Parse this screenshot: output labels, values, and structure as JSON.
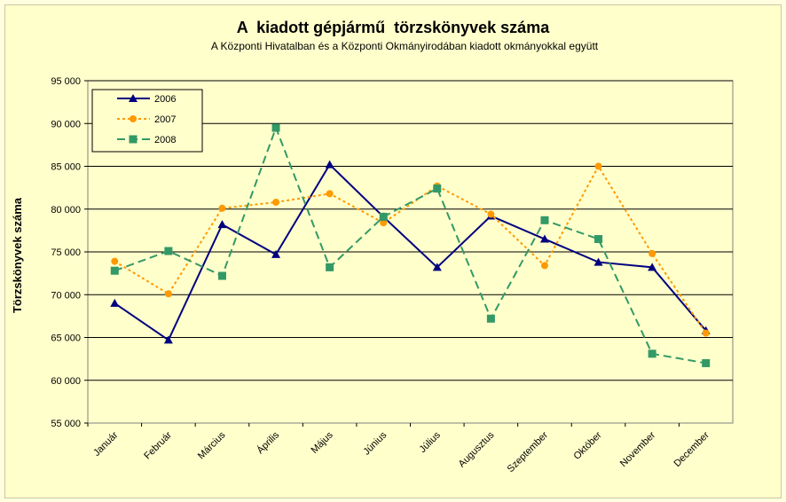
{
  "chart_data": {
    "type": "line",
    "title": "A  kiadott gépjármű  törzskönyvek száma",
    "subtitle": "A Központi Hivatalban és a Központi Okmányirodában kiadott okmányokkal együtt",
    "xlabel": "",
    "ylabel": "Törzskönyvek száma",
    "ylim": [
      55000,
      95000
    ],
    "yticks": [
      "55 000",
      "60 000",
      "65 000",
      "70 000",
      "75 000",
      "80 000",
      "85 000",
      "90 000",
      "95 000"
    ],
    "ytick_values": [
      55000,
      60000,
      65000,
      70000,
      75000,
      80000,
      85000,
      90000,
      95000
    ],
    "grid": true,
    "legend_position": "top-left",
    "categories": [
      "Január",
      "Február",
      "Március",
      "Április",
      "Május",
      "Június",
      "Július",
      "Augusztus",
      "Szeptember",
      "Október",
      "November",
      "December"
    ],
    "series": [
      {
        "name": "2006",
        "color": "#000080",
        "style": "solid",
        "marker": "triangle",
        "values": [
          69000,
          64700,
          78200,
          74700,
          85200,
          79100,
          73200,
          79200,
          76500,
          73800,
          73200,
          65800
        ]
      },
      {
        "name": "2007",
        "color": "#ff9900",
        "style": "dotted",
        "marker": "circle",
        "values": [
          73900,
          70100,
          80100,
          80800,
          81800,
          78400,
          82700,
          79400,
          73400,
          85000,
          74800,
          65500
        ]
      },
      {
        "name": "2008",
        "color": "#339966",
        "style": "dashed",
        "marker": "square",
        "values": [
          72800,
          75100,
          72200,
          89500,
          73200,
          79100,
          82400,
          67200,
          78700,
          76500,
          63100,
          62000
        ]
      }
    ]
  }
}
